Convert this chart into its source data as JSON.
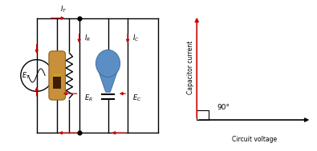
{
  "bg_color": "#ffffff",
  "circuit_color": "#000000",
  "arrow_color": "#cc0000",
  "label_color": "#000000",
  "phasor_border_color": "#000000",
  "phasor_arrow_color": "#cc0000",
  "phasor_text_color": "#000000",
  "angle_label": "90°",
  "y_axis_label": "Capacitor current",
  "x_axis_label": "Circuit voltage",
  "resistor_body_color": "#c8903a",
  "resistor_edge_color": "#8a6020",
  "resistor_band1": "#4a2800",
  "resistor_band2": "#4a2800",
  "resistor_band3": "#4a2800",
  "capacitor_color": "#5b8ec4",
  "capacitor_edge_color": "#3a6a9a"
}
